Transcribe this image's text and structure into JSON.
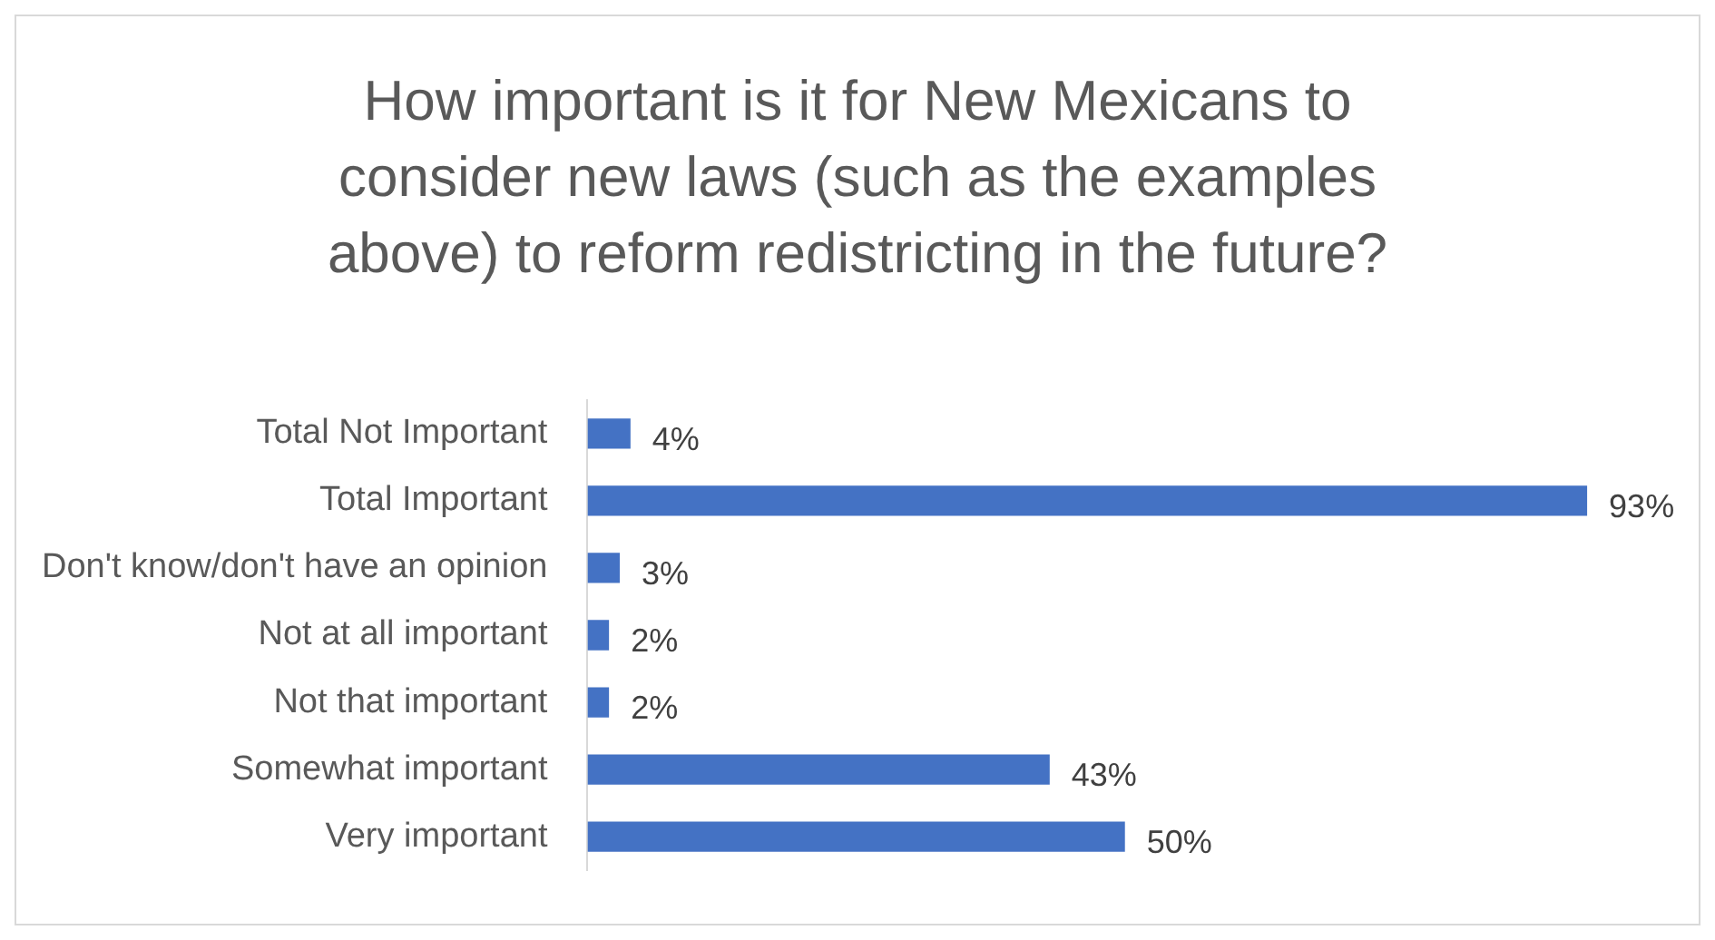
{
  "chart_data": {
    "type": "bar",
    "orientation": "horizontal",
    "title": "How important is it for New Mexicans to consider new laws (such as the examples above) to reform redistricting in the future?",
    "categories": [
      "Total Not Important",
      "Total Important",
      "Don't know/don't have an opinion",
      "Not at all important",
      "Not that important",
      "Somewhat important",
      "Very important"
    ],
    "values": [
      4,
      93,
      3,
      2,
      2,
      43,
      50
    ],
    "value_labels": [
      "4%",
      "93%",
      "3%",
      "2%",
      "2%",
      "43%",
      "50%"
    ],
    "color": "#4472c4",
    "legend": false
  }
}
